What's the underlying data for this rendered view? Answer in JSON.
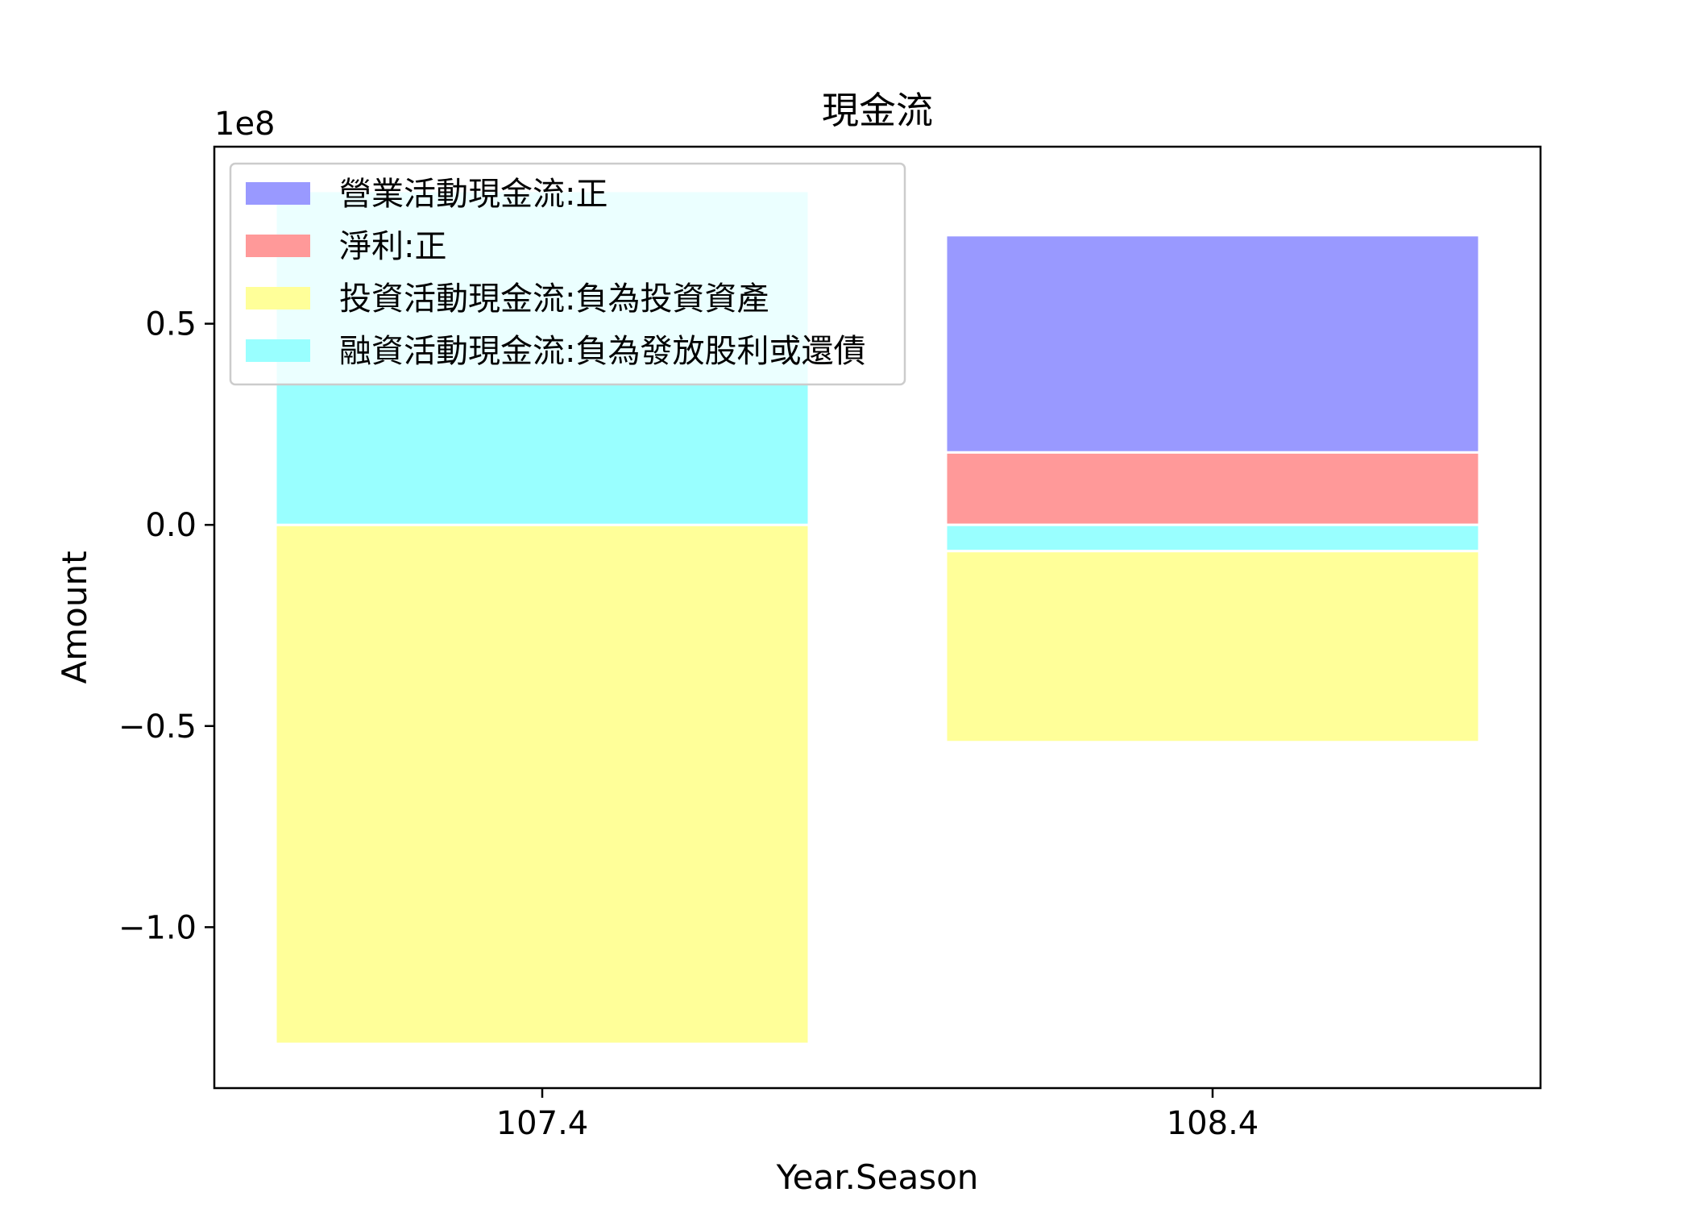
{
  "chart_data": {
    "type": "bar",
    "stacked": true,
    "title": "現金流",
    "xlabel": "Year.Season",
    "ylabel": "Amount",
    "offset_label": "1e8",
    "categories": [
      "107.4",
      "108.4"
    ],
    "ylim": [
      -1.4,
      0.94
    ],
    "yticks": [
      0.5,
      0.0,
      -0.5,
      -1.0
    ],
    "ytick_labels": [
      "0.5",
      "0.0",
      "−0.5",
      "−1.0"
    ],
    "legend_position": "upper-left",
    "grid": false,
    "series": [
      {
        "name": "營業活動現金流:正",
        "color": "#9999ff",
        "segments": [
          null,
          [
            0.18,
            0.72
          ]
        ]
      },
      {
        "name": "淨利:正",
        "color": "#ff9999",
        "segments": [
          null,
          [
            0.0,
            0.18
          ]
        ]
      },
      {
        "name": "投資活動現金流:負為投資資產",
        "color": "#ffff99",
        "segments": [
          [
            -1.29,
            0.0
          ],
          [
            -0.54,
            -0.065
          ]
        ]
      },
      {
        "name": "融資活動現金流:負為發放股利或還債",
        "color": "#99ffff",
        "segments": [
          [
            0.0,
            0.83
          ],
          [
            -0.065,
            0.0
          ]
        ]
      }
    ]
  }
}
